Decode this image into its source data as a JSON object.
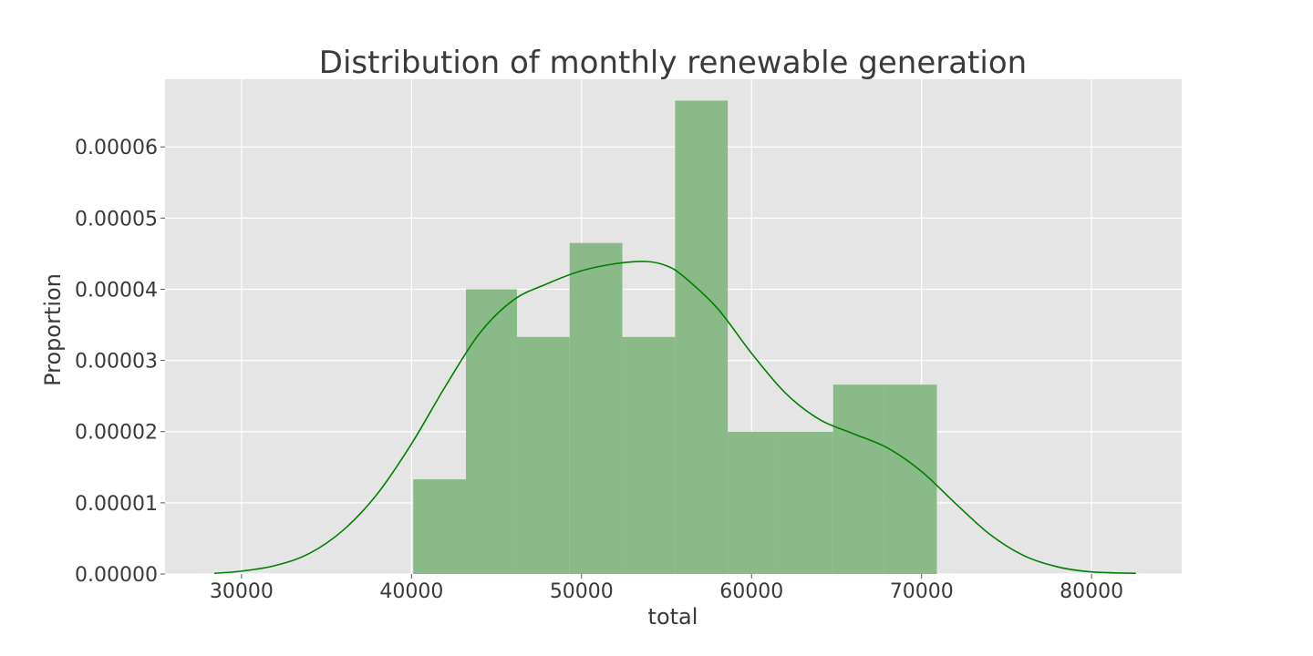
{
  "chart_data": {
    "type": "bar",
    "title": "Distribution of monthly renewable generation",
    "xlabel": "total",
    "ylabel": "Proportion",
    "xlim": [
      25500,
      85300
    ],
    "ylim": [
      0,
      6.95e-05
    ],
    "xticks": [
      30000,
      40000,
      50000,
      60000,
      70000,
      80000
    ],
    "xtick_labels": [
      "30000",
      "40000",
      "50000",
      "60000",
      "70000",
      "80000"
    ],
    "yticks": [
      0,
      1e-05,
      2e-05,
      3e-05,
      4e-05,
      5e-05,
      6e-05
    ],
    "ytick_labels": [
      "0.00000",
      "0.00001",
      "0.00002",
      "0.00003",
      "0.00004",
      "0.00005",
      "0.00006"
    ],
    "grid": true,
    "colors": {
      "plot_background": "#e5e5e5",
      "grid": "#ffffff",
      "bars": "#8aba87",
      "kde_line": "#008000",
      "text": "#3a3a3a"
    },
    "histogram": {
      "bin_edges": [
        40100,
        43200,
        46200,
        49300,
        52400,
        55500,
        58600,
        61700,
        64800,
        67800,
        70900
      ],
      "densities": [
        1.33e-05,
        4e-05,
        3.33e-05,
        4.65e-05,
        3.33e-05,
        6.65e-05,
        2e-05,
        2e-05,
        2.66e-05,
        2.66e-05
      ]
    },
    "kde": {
      "x": [
        28400,
        30000,
        32000,
        34000,
        36000,
        38000,
        40000,
        42000,
        44000,
        46000,
        48000,
        50000,
        52000,
        53800,
        55000,
        56000,
        58000,
        60000,
        62000,
        64000,
        66000,
        68000,
        70000,
        72000,
        74000,
        76000,
        78000,
        80000,
        82600
      ],
      "y": [
        1e-07,
        4e-07,
        1.2e-06,
        2.9e-06,
        6.2e-06,
        1.13e-05,
        1.83e-05,
        2.64e-05,
        3.38e-05,
        3.85e-05,
        4.08e-05,
        4.26e-05,
        4.36e-05,
        4.39e-05,
        4.33e-05,
        4.18e-05,
        3.73e-05,
        3.1e-05,
        2.54e-05,
        2.17e-05,
        1.97e-05,
        1.77e-05,
        1.44e-05,
        9.9e-06,
        5.6e-06,
        2.6e-06,
        1e-06,
        3e-07,
        1e-07
      ]
    }
  }
}
